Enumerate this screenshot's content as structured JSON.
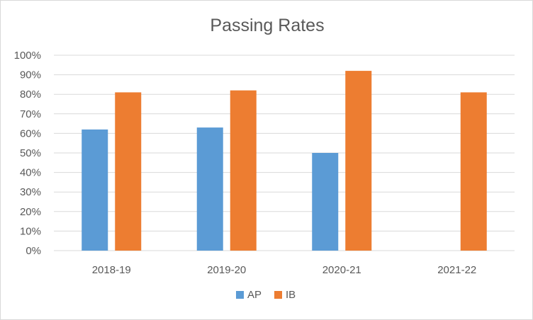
{
  "chart_data": {
    "type": "bar",
    "title": "Passing Rates",
    "xlabel": "",
    "ylabel": "",
    "categories": [
      "2018-19",
      "2019-20",
      "2020-21",
      "2021-22"
    ],
    "series": [
      {
        "name": "AP",
        "color": "#5b9bd5",
        "values": [
          0.62,
          0.63,
          0.5,
          null
        ]
      },
      {
        "name": "IB",
        "color": "#ed7d31",
        "values": [
          0.81,
          0.82,
          0.92,
          0.81
        ]
      }
    ],
    "ylim": [
      0,
      1
    ],
    "yticks": [
      "0%",
      "10%",
      "20%",
      "30%",
      "40%",
      "50%",
      "60%",
      "70%",
      "80%",
      "90%",
      "100%"
    ],
    "grid": true,
    "legend_position": "bottom"
  }
}
